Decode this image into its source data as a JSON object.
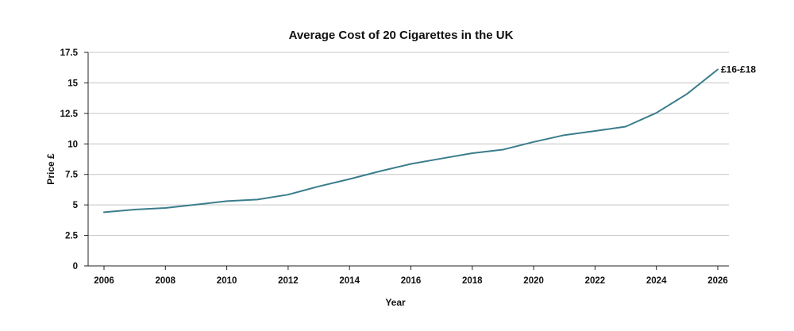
{
  "chart_data": {
    "type": "line",
    "title": "Average Cost of 20 Cigarettes in the UK",
    "xlabel": "Year",
    "ylabel": "Price £",
    "xlim": [
      2006,
      2026
    ],
    "ylim": [
      0,
      17.5
    ],
    "x_ticks": [
      "2006",
      "2008",
      "2010",
      "2012",
      "2014",
      "2016",
      "2018",
      "2020",
      "2022",
      "2024",
      "2026"
    ],
    "y_ticks": [
      "0",
      "2.5",
      "5",
      "7.5",
      "10",
      "12.5",
      "15",
      "17.5"
    ],
    "grid": true,
    "line_color": "#3a7d8c",
    "series": [
      {
        "x": [
          2006,
          2007,
          2008,
          2009,
          2010,
          2011,
          2012,
          2013,
          2014,
          2015,
          2016,
          2017,
          2018,
          2019,
          2020,
          2021,
          2022,
          2023,
          2024,
          2025,
          2026
        ],
        "values": [
          4.4,
          4.62,
          4.75,
          5.02,
          5.31,
          5.44,
          5.84,
          6.52,
          7.12,
          7.77,
          8.36,
          8.8,
          9.24,
          9.53,
          10.16,
          10.72,
          11.06,
          11.42,
          12.54,
          14.1,
          16.1
        ]
      }
    ],
    "annotations": [
      {
        "text": "£16-£18",
        "x": 2026,
        "y": 16.1
      }
    ]
  }
}
